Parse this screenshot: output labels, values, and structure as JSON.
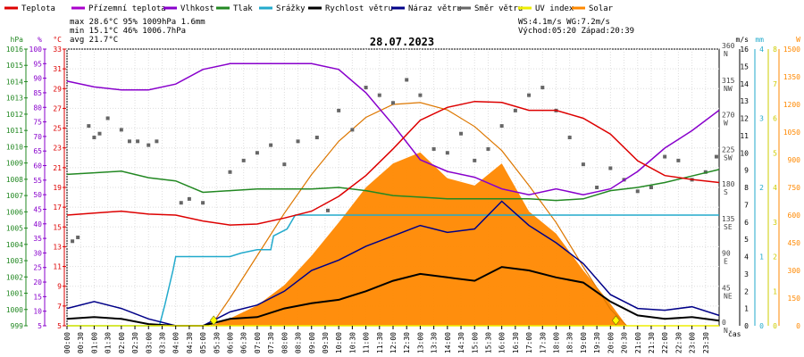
{
  "chart_data": {
    "type": "line",
    "title": "28.07.2023",
    "legend": [
      {
        "name": "Teplota",
        "color": "#dd0000"
      },
      {
        "name": "Přízemní teplota",
        "color": "#aa00cc"
      },
      {
        "name": "Vlhkost",
        "color": "#8800cc"
      },
      {
        "name": "Tlak",
        "color": "#228822"
      },
      {
        "name": "Srážky",
        "color": "#22aacc"
      },
      {
        "name": "Rychlost větru",
        "color": "#000000"
      },
      {
        "name": "Náraz větru",
        "color": "#000088"
      },
      {
        "name": "Směr větru",
        "color": "#666666"
      },
      {
        "name": "UV index",
        "color": "#eeee00"
      },
      {
        "name": "Solar",
        "color": "#ff8800"
      }
    ],
    "stats": {
      "max_label": "max 28.6°C  95%  1009hPa    1.6mm",
      "min_label": "min 15.1°C  46%  1006.7hPa",
      "avg_label": "avg 21.7°C",
      "wind_label": "WS:4.1m/s       WG:7.2m/s",
      "sun_label": "Východ:05:20  Západ:20:39"
    },
    "axes": {
      "hpa": {
        "unit": "hPa",
        "ticks": [
          999,
          1000,
          1001,
          1002,
          1003,
          1004,
          1005,
          1006,
          1007,
          1008,
          1009,
          1010,
          1011,
          1012,
          1013,
          1014,
          1015,
          1016
        ],
        "color": "#228822"
      },
      "humidity": {
        "unit": "%",
        "ticks": [
          5,
          10,
          15,
          20,
          25,
          30,
          35,
          40,
          45,
          50,
          55,
          60,
          65,
          70,
          75,
          80,
          85,
          90,
          95,
          100
        ],
        "color": "#8800cc"
      },
      "temp": {
        "unit": "°C",
        "ticks": [
          5,
          7,
          9,
          11,
          13,
          15,
          17,
          19,
          21,
          23,
          25,
          27,
          29,
          31,
          33
        ],
        "color": "#dd0000"
      },
      "wind": {
        "unit": "m/s",
        "ticks": [
          0,
          1,
          2,
          3,
          4,
          5,
          6,
          7,
          8,
          9,
          10,
          11,
          12,
          13,
          14,
          15,
          16
        ],
        "color": "#000000"
      },
      "rain": {
        "unit": "mm",
        "ticks": [
          0,
          1,
          2,
          3,
          4
        ],
        "color": "#22aacc"
      },
      "uv": {
        "unit": "",
        "ticks": [
          0,
          1,
          2,
          3,
          4,
          5,
          6,
          7,
          8
        ],
        "color": "#eeee00"
      },
      "solar": {
        "unit": "W",
        "ticks": [
          0,
          150,
          300,
          450,
          600,
          750,
          900,
          1050,
          1200,
          1350,
          1500
        ],
        "color": "#ff8800"
      },
      "direction": {
        "ticks": [
          {
            "deg": 0,
            "label": "N"
          },
          {
            "deg": 45,
            "label": "NE"
          },
          {
            "deg": 90,
            "label": "E"
          },
          {
            "deg": 135,
            "label": "SE"
          },
          {
            "deg": 180,
            "label": "S"
          },
          {
            "deg": 225,
            "label": "SW"
          },
          {
            "deg": 270,
            "label": "W"
          },
          {
            "deg": 315,
            "label": "NW"
          },
          {
            "deg": 360,
            "label": "N"
          }
        ]
      },
      "time": {
        "xlabel": "čas",
        "ticks": [
          "00:00",
          "00:30",
          "01:00",
          "01:30",
          "02:00",
          "02:30",
          "03:00",
          "03:30",
          "04:00",
          "04:30",
          "05:00",
          "05:30",
          "06:00",
          "06:30",
          "07:00",
          "07:30",
          "08:00",
          "08:30",
          "09:00",
          "09:30",
          "10:00",
          "10:30",
          "11:00",
          "11:30",
          "12:00",
          "12:30",
          "13:00",
          "13:30",
          "14:00",
          "14:30",
          "15:00",
          "15:30",
          "16:00",
          "16:30",
          "17:00",
          "17:30",
          "18:00",
          "18:30",
          "19:00",
          "19:30",
          "20:00",
          "20:30",
          "21:00",
          "21:30",
          "22:00",
          "22:30",
          "23:00",
          "23:30"
        ]
      }
    },
    "series": [
      {
        "name": "Teplota",
        "axis": "temp",
        "color": "#dd0000",
        "x": [
          0,
          1,
          2,
          3,
          4,
          5,
          6,
          7,
          8,
          9,
          10,
          11,
          12,
          13,
          14,
          15,
          16,
          17,
          18,
          19,
          20,
          21,
          22,
          23,
          24
        ],
        "y": [
          16.2,
          16.4,
          16.6,
          16.3,
          16.2,
          15.6,
          15.2,
          15.3,
          15.9,
          16.6,
          18.1,
          20.2,
          22.9,
          25.8,
          27.1,
          27.7,
          27.6,
          26.8,
          26.8,
          26.0,
          24.4,
          21.7,
          20.2,
          19.8,
          19.5
        ]
      },
      {
        "name": "Vlhkost",
        "axis": "humidity",
        "color": "#8800cc",
        "x": [
          0,
          1,
          2,
          3,
          4,
          5,
          6,
          7,
          8,
          9,
          10,
          11,
          12,
          13,
          14,
          15,
          16,
          17,
          18,
          19,
          20,
          21,
          22,
          23,
          24
        ],
        "y": [
          89,
          87,
          86,
          86,
          88,
          93,
          95,
          95,
          95,
          95,
          93,
          85,
          74,
          62,
          58,
          56,
          52,
          50,
          52,
          50,
          52,
          58,
          66,
          72,
          79
        ]
      },
      {
        "name": "Tlak",
        "axis": "hpa",
        "color": "#228822",
        "x": [
          0,
          1,
          2,
          3,
          4,
          5,
          6,
          7,
          8,
          9,
          10,
          11,
          12,
          13,
          14,
          15,
          16,
          17,
          18,
          19,
          20,
          21,
          22,
          23,
          24
        ],
        "y": [
          1008.3,
          1008.4,
          1008.5,
          1008.1,
          1007.9,
          1007.2,
          1007.3,
          1007.4,
          1007.4,
          1007.4,
          1007.5,
          1007.3,
          1007.0,
          1006.9,
          1006.8,
          1006.8,
          1006.8,
          1006.8,
          1006.7,
          1006.8,
          1007.3,
          1007.5,
          1007.8,
          1008.2,
          1008.6
        ]
      },
      {
        "name": "Srážky",
        "axis": "rain",
        "color": "#22aacc",
        "x": [
          0,
          3.4,
          3.6,
          3.9,
          4.0,
          6.0,
          6.4,
          7.0,
          7.5,
          7.6,
          8.1,
          8.4,
          9.0,
          12.0,
          16.0,
          20.0,
          24.0
        ],
        "y": [
          0,
          0,
          0.3,
          0.8,
          1.0,
          1.0,
          1.05,
          1.1,
          1.1,
          1.3,
          1.4,
          1.6,
          1.6,
          1.6,
          1.6,
          1.6,
          1.6
        ]
      },
      {
        "name": "Rychlost větru",
        "axis": "wind",
        "color": "#000000",
        "x": [
          0,
          1,
          2,
          3,
          4,
          5,
          6,
          7,
          8,
          9,
          10,
          11,
          12,
          13,
          14,
          15,
          16,
          17,
          18,
          19,
          20,
          21,
          22,
          23,
          24
        ],
        "y": [
          0.4,
          0.5,
          0.4,
          0.1,
          0.0,
          0.0,
          0.4,
          0.5,
          1.0,
          1.3,
          1.5,
          2.0,
          2.6,
          3.0,
          2.8,
          2.6,
          3.4,
          3.2,
          2.8,
          2.5,
          1.4,
          0.6,
          0.4,
          0.5,
          0.3
        ]
      },
      {
        "name": "Náraz větru",
        "axis": "wind",
        "color": "#000088",
        "x": [
          0,
          1,
          2,
          3,
          4,
          5,
          6,
          7,
          8,
          9,
          10,
          11,
          12,
          13,
          14,
          15,
          16,
          17,
          18,
          19,
          20,
          21,
          22,
          23,
          24
        ],
        "y": [
          1.0,
          1.4,
          1.0,
          0.4,
          0.0,
          0.0,
          0.8,
          1.2,
          2.0,
          3.2,
          3.8,
          4.6,
          5.2,
          5.8,
          5.4,
          5.6,
          7.2,
          5.8,
          4.8,
          3.6,
          1.8,
          1.0,
          0.9,
          1.1,
          0.6
        ]
      },
      {
        "name": "Solar",
        "axis": "solar",
        "color": "#ff8800",
        "x": [
          0,
          5.3,
          6,
          7,
          8,
          9,
          10,
          11,
          12,
          13,
          14,
          15,
          16,
          17,
          18,
          19,
          20,
          20.6,
          24
        ],
        "y": [
          0,
          0,
          40,
          110,
          220,
          380,
          560,
          750,
          880,
          940,
          800,
          760,
          880,
          620,
          500,
          300,
          120,
          0,
          0
        ]
      },
      {
        "name": "Solar max",
        "axis": "solar",
        "color": "#dd7700",
        "x": [
          5.3,
          6,
          7,
          8,
          9,
          10,
          11,
          12,
          13,
          14,
          15,
          16,
          17,
          18,
          19,
          20,
          20.6
        ],
        "y": [
          0,
          150,
          380,
          610,
          820,
          1000,
          1130,
          1200,
          1210,
          1170,
          1080,
          950,
          760,
          560,
          320,
          90,
          0
        ]
      },
      {
        "name": "UV index",
        "axis": "uv",
        "color": "#eeee00",
        "x": [
          0,
          24
        ],
        "y": [
          0,
          0
        ]
      }
    ],
    "wind_direction": {
      "times": [
        0.2,
        0.4,
        0.8,
        1.0,
        1.2,
        1.5,
        2.0,
        2.3,
        2.6,
        3.0,
        3.3,
        4.2,
        4.5,
        5.0,
        6.0,
        6.5,
        7.0,
        7.5,
        8.0,
        8.5,
        9.2,
        9.6,
        10.0,
        10.5,
        11.0,
        11.5,
        12.0,
        12.5,
        13.0,
        13.5,
        14.0,
        14.5,
        15.0,
        15.5,
        16.0,
        16.5,
        17.0,
        17.5,
        18.0,
        18.5,
        19.0,
        19.5,
        20.0,
        20.5,
        21.0,
        21.5,
        22.0,
        22.5,
        23.0,
        23.5,
        23.9
      ],
      "degrees": [
        110,
        115,
        260,
        245,
        250,
        270,
        255,
        240,
        240,
        235,
        240,
        160,
        165,
        160,
        200,
        215,
        225,
        235,
        210,
        240,
        245,
        150,
        280,
        255,
        310,
        300,
        290,
        320,
        300,
        230,
        225,
        250,
        215,
        230,
        260,
        280,
        300,
        310,
        280,
        245,
        210,
        180,
        205,
        190,
        175,
        180,
        220,
        215,
        190,
        200,
        220
      ]
    },
    "uv_markers": [
      5.4,
      20.2
    ]
  }
}
